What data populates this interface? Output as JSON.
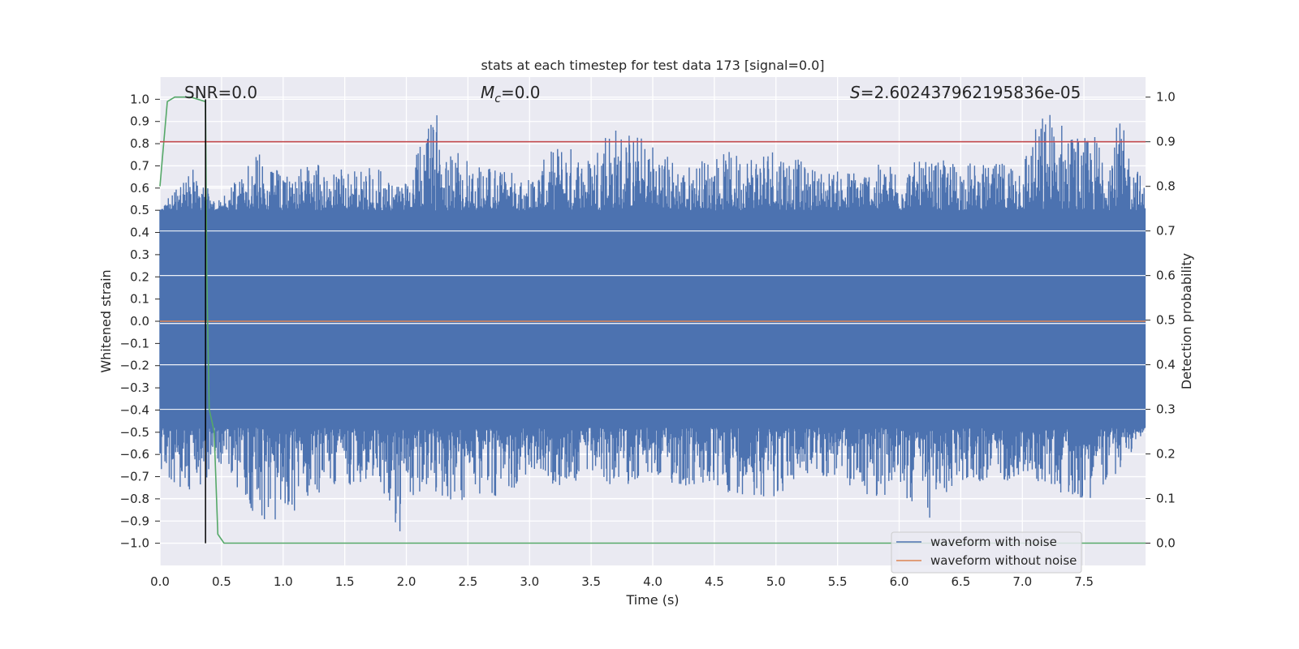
{
  "chart_data": {
    "type": "line",
    "title": "stats at each timestep for test data 173 [signal=0.0]",
    "xlabel": "Time (s)",
    "ylabel_left": "Whitened strain",
    "ylabel_right": "Detection probability",
    "xlim": [
      0.0,
      8.0
    ],
    "ylim_left": [
      -1.1,
      1.1
    ],
    "ylim_right": [
      -0.05,
      1.045
    ],
    "x_ticks": [
      "0.0",
      "0.5",
      "1.0",
      "1.5",
      "2.0",
      "2.5",
      "3.0",
      "3.5",
      "4.0",
      "4.5",
      "5.0",
      "5.5",
      "6.0",
      "6.5",
      "7.0",
      "7.5"
    ],
    "y_ticks_left": [
      "1.0",
      "0.9",
      "0.8",
      "0.7",
      "0.6",
      "0.5",
      "0.4",
      "0.3",
      "0.2",
      "0.1",
      "0.0",
      "−0.1",
      "−0.2",
      "−0.3",
      "−0.4",
      "−0.5",
      "−0.6",
      "−0.7",
      "−0.8",
      "−0.9",
      "−1.0"
    ],
    "y_ticks_right": [
      "1.0",
      "0.9",
      "0.8",
      "0.7",
      "0.6",
      "0.5",
      "0.4",
      "0.3",
      "0.2",
      "0.1",
      "0.0"
    ],
    "annotations": {
      "snr": "SNR=0.0",
      "mc_symbol": "M",
      "mc_sub": "c",
      "mc_value": "=0.0",
      "s_symbol": "S",
      "s_value": "=2.602437962195836e-05"
    },
    "legend": {
      "position": "lower-right",
      "entries": [
        "waveform with noise",
        "waveform without noise"
      ]
    },
    "series": [
      {
        "name": "waveform with noise",
        "axis": "left",
        "color": "#4c72b0",
        "description": "dense noise, roughly within ±0.5 with spikes",
        "x": [
          0.0,
          0.25,
          0.5,
          0.8,
          1.0,
          1.25,
          1.5,
          1.75,
          1.95,
          2.0,
          2.25,
          2.5,
          2.75,
          3.0,
          3.25,
          3.5,
          3.6,
          4.0,
          4.25,
          4.5,
          4.75,
          5.0,
          5.25,
          5.5,
          5.75,
          6.0,
          6.25,
          6.5,
          6.75,
          7.0,
          7.2,
          7.5,
          7.8,
          8.0
        ],
        "upper": [
          0.5,
          0.7,
          0.55,
          0.78,
          0.65,
          0.72,
          0.68,
          0.7,
          0.6,
          0.65,
          0.96,
          0.74,
          0.7,
          0.65,
          0.82,
          0.75,
          0.92,
          0.82,
          0.7,
          0.76,
          0.77,
          0.82,
          0.7,
          0.68,
          0.7,
          0.72,
          0.72,
          0.73,
          0.7,
          0.77,
          0.98,
          0.83,
          0.9,
          0.6
        ],
        "lower": [
          -0.72,
          -0.78,
          -0.65,
          -0.92,
          -0.9,
          -0.78,
          -0.75,
          -0.7,
          -1.0,
          -0.8,
          -0.8,
          -0.82,
          -0.8,
          -0.7,
          -0.75,
          -0.72,
          -0.75,
          -0.72,
          -0.76,
          -0.78,
          -0.78,
          -0.8,
          -0.7,
          -0.72,
          -0.8,
          -0.78,
          -0.9,
          -0.72,
          -0.74,
          -0.7,
          -0.75,
          -0.82,
          -0.68,
          -0.48
        ]
      },
      {
        "name": "waveform without noise",
        "axis": "left",
        "color": "#dd8452",
        "x": [
          0.0,
          8.0
        ],
        "y": [
          0.0,
          0.0
        ]
      },
      {
        "name": "detection probability",
        "axis": "right",
        "color": "#55a868",
        "x": [
          0.0,
          0.06,
          0.12,
          0.25,
          0.37,
          0.38,
          0.4,
          0.44,
          0.47,
          0.52,
          8.0
        ],
        "y": [
          0.8,
          0.99,
          1.0,
          1.0,
          0.99,
          0.6,
          0.3,
          0.25,
          0.02,
          0.0,
          0.0
        ]
      },
      {
        "name": "threshold",
        "axis": "right",
        "color": "#c44e52",
        "x": [
          0.0,
          8.0
        ],
        "y": [
          0.9,
          0.9
        ]
      }
    ],
    "marker_vline": {
      "x": 0.37,
      "y_from": -1.0,
      "y_to": 1.0,
      "color": "#000000"
    }
  }
}
